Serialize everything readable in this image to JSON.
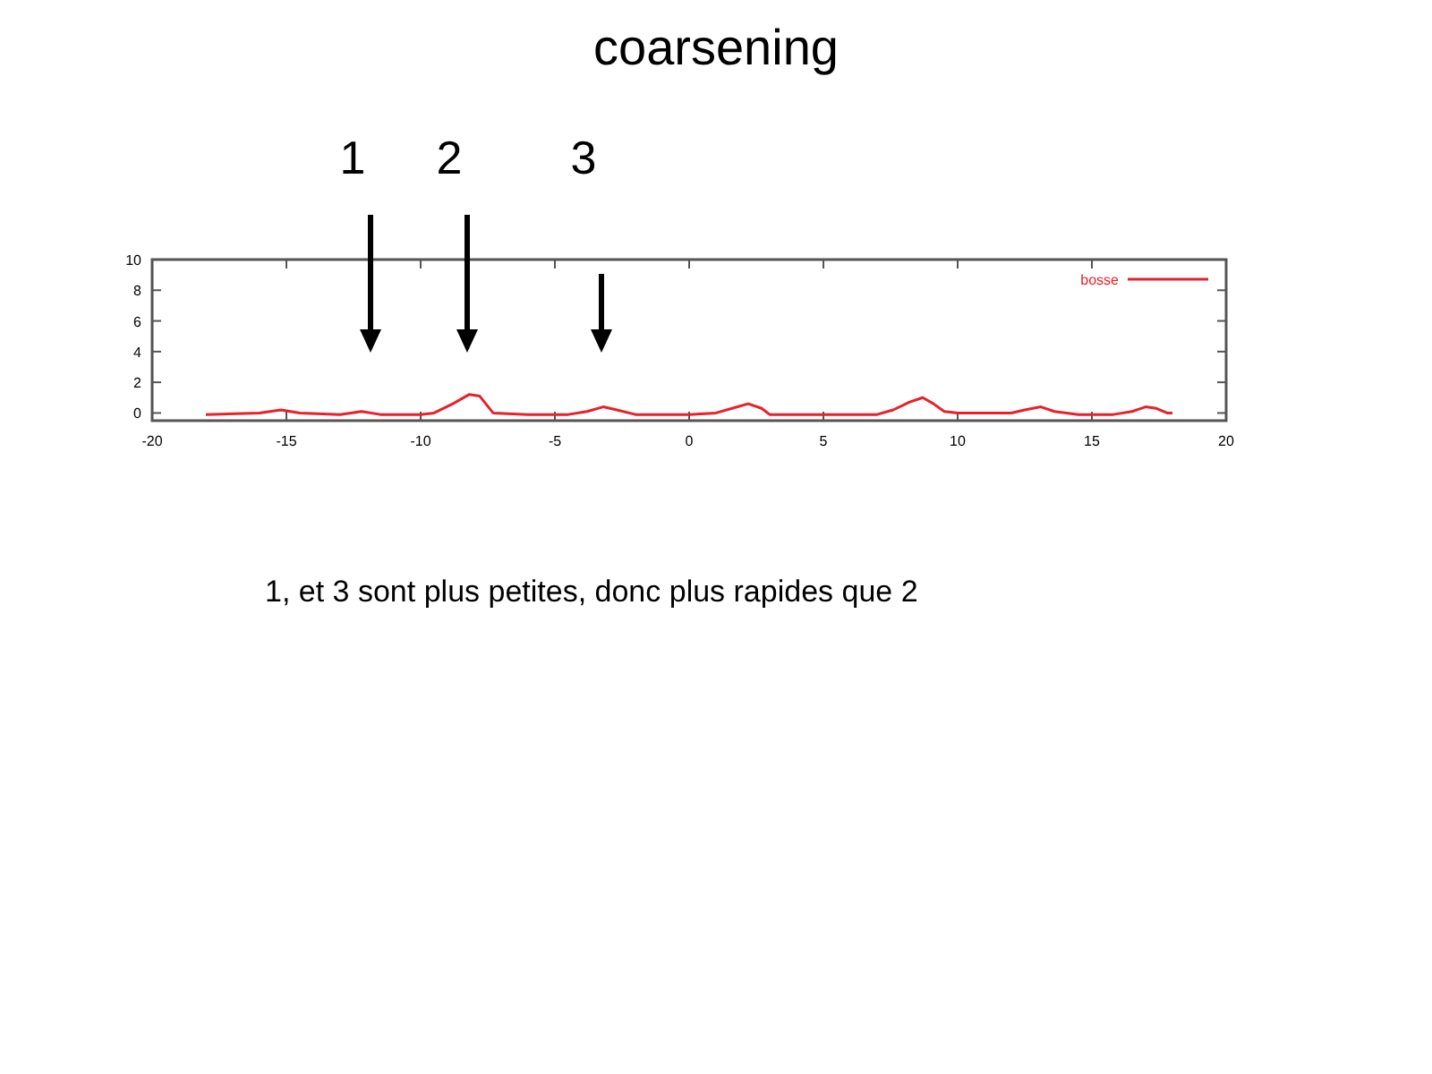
{
  "chart_data": {
    "type": "line",
    "title": "coarsening",
    "xlim": [
      -20,
      20
    ],
    "xticks": [
      -20,
      -15,
      -10,
      -5,
      0,
      5,
      10,
      15,
      20
    ],
    "ylim": [
      -0.5,
      10
    ],
    "yticks": [
      0,
      2,
      4,
      6,
      8,
      10
    ],
    "legend": "top right",
    "series": [
      {
        "name": "bosse",
        "color": "#e8202a",
        "x": [
          -18,
          -16,
          -15.2,
          -14.5,
          -13,
          -12.2,
          -11.5,
          -10,
          -9.5,
          -8.8,
          -8.2,
          -7.8,
          -7.3,
          -6,
          -4.5,
          -3.8,
          -3.2,
          -2.7,
          -2,
          0,
          1,
          1.6,
          2.2,
          2.7,
          3,
          7,
          7.6,
          8.2,
          8.7,
          9.1,
          9.5,
          10,
          12,
          12.5,
          13.1,
          13.6,
          14.5,
          15.8,
          16.5,
          17,
          17.4,
          17.8,
          18
        ],
        "values": [
          -0.1,
          0,
          0.2,
          0,
          -0.1,
          0.1,
          -0.1,
          -0.1,
          0,
          0.6,
          1.2,
          1.1,
          0,
          -0.1,
          -0.1,
          0.1,
          0.4,
          0.2,
          -0.1,
          -0.1,
          0,
          0.3,
          0.6,
          0.3,
          -0.1,
          -0.1,
          0.2,
          0.7,
          1.0,
          0.6,
          0.1,
          0,
          0,
          0.2,
          0.4,
          0.1,
          -0.1,
          -0.1,
          0.1,
          0.4,
          0.3,
          0,
          0
        ]
      }
    ],
    "annotations": [
      "1",
      "2",
      "3",
      "1, et 3 sont plus petites, donc plus rapides que 2"
    ]
  }
}
